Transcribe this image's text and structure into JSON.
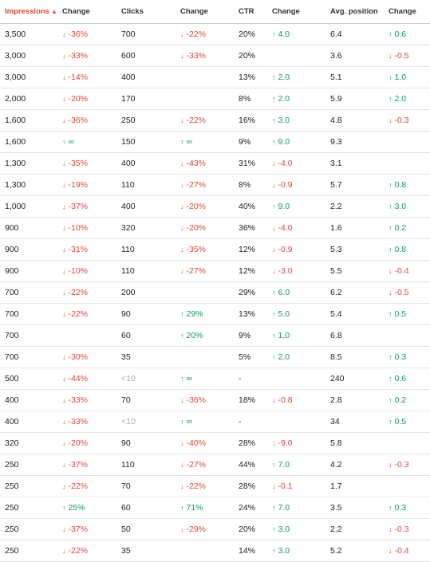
{
  "columns": [
    {
      "label": "Impressions",
      "sorted": true,
      "sort_icon": "▲"
    },
    {
      "label": "Change"
    },
    {
      "label": "Clicks"
    },
    {
      "label": "Change"
    },
    {
      "label": "CTR"
    },
    {
      "label": "Change"
    },
    {
      "label": "Avg. position"
    },
    {
      "label": "Change"
    }
  ],
  "rows": [
    {
      "imp": "3,500",
      "imp_chg": "-36%",
      "imp_dir": "down",
      "clicks": "700",
      "clicks_chg": "-22%",
      "clicks_dir": "down",
      "ctr": "20%",
      "ctr_chg": "4.0",
      "ctr_dir": "up",
      "pos": "6.4",
      "pos_chg": "0.6",
      "pos_dir": "up"
    },
    {
      "imp": "3,000",
      "imp_chg": "-33%",
      "imp_dir": "down",
      "clicks": "600",
      "clicks_chg": "-33%",
      "clicks_dir": "down",
      "ctr": "20%",
      "ctr_chg": "",
      "ctr_dir": "",
      "pos": "3.6",
      "pos_chg": "-0.5",
      "pos_dir": "down"
    },
    {
      "imp": "3,000",
      "imp_chg": "-14%",
      "imp_dir": "down",
      "clicks": "400",
      "clicks_chg": "",
      "clicks_dir": "",
      "ctr": "13%",
      "ctr_chg": "2.0",
      "ctr_dir": "up",
      "pos": "5.1",
      "pos_chg": "1.0",
      "pos_dir": "up"
    },
    {
      "imp": "2,000",
      "imp_chg": "-20%",
      "imp_dir": "down",
      "clicks": "170",
      "clicks_chg": "",
      "clicks_dir": "",
      "ctr": "8%",
      "ctr_chg": "2.0",
      "ctr_dir": "up",
      "pos": "5.9",
      "pos_chg": "2.0",
      "pos_dir": "up"
    },
    {
      "imp": "1,600",
      "imp_chg": "-36%",
      "imp_dir": "down",
      "clicks": "250",
      "clicks_chg": "-22%",
      "clicks_dir": "down",
      "ctr": "16%",
      "ctr_chg": "3.0",
      "ctr_dir": "up",
      "pos": "4.8",
      "pos_chg": "-0.3",
      "pos_dir": "down"
    },
    {
      "imp": "1,600",
      "imp_chg": "∞",
      "imp_dir": "up",
      "clicks": "150",
      "clicks_chg": "∞",
      "clicks_dir": "up",
      "ctr": "9%",
      "ctr_chg": "9.0",
      "ctr_dir": "up",
      "pos": "9.3",
      "pos_chg": "",
      "pos_dir": ""
    },
    {
      "imp": "1,300",
      "imp_chg": "-35%",
      "imp_dir": "down",
      "clicks": "400",
      "clicks_chg": "-43%",
      "clicks_dir": "down",
      "ctr": "31%",
      "ctr_chg": "-4.0",
      "ctr_dir": "down",
      "pos": "3.1",
      "pos_chg": "",
      "pos_dir": ""
    },
    {
      "imp": "1,300",
      "imp_chg": "-19%",
      "imp_dir": "down",
      "clicks": "110",
      "clicks_chg": "-27%",
      "clicks_dir": "down",
      "ctr": "8%",
      "ctr_chg": "-0.9",
      "ctr_dir": "down",
      "pos": "5.7",
      "pos_chg": "0.8",
      "pos_dir": "up"
    },
    {
      "imp": "1,000",
      "imp_chg": "-37%",
      "imp_dir": "down",
      "clicks": "400",
      "clicks_chg": "-20%",
      "clicks_dir": "down",
      "ctr": "40%",
      "ctr_chg": "9.0",
      "ctr_dir": "up",
      "pos": "2.2",
      "pos_chg": "3.0",
      "pos_dir": "up"
    },
    {
      "imp": "900",
      "imp_chg": "-10%",
      "imp_dir": "down",
      "clicks": "320",
      "clicks_chg": "-20%",
      "clicks_dir": "down",
      "ctr": "36%",
      "ctr_chg": "-4.0",
      "ctr_dir": "down",
      "pos": "1.6",
      "pos_chg": "0.2",
      "pos_dir": "up"
    },
    {
      "imp": "900",
      "imp_chg": "-31%",
      "imp_dir": "down",
      "clicks": "110",
      "clicks_chg": "-35%",
      "clicks_dir": "down",
      "ctr": "12%",
      "ctr_chg": "-0.9",
      "ctr_dir": "down",
      "pos": "5.3",
      "pos_chg": "0.8",
      "pos_dir": "up"
    },
    {
      "imp": "900",
      "imp_chg": "-10%",
      "imp_dir": "down",
      "clicks": "110",
      "clicks_chg": "-27%",
      "clicks_dir": "down",
      "ctr": "12%",
      "ctr_chg": "-3.0",
      "ctr_dir": "down",
      "pos": "5.5",
      "pos_chg": "-0.4",
      "pos_dir": "down"
    },
    {
      "imp": "700",
      "imp_chg": "-22%",
      "imp_dir": "down",
      "clicks": "200",
      "clicks_chg": "",
      "clicks_dir": "",
      "ctr": "29%",
      "ctr_chg": "6.0",
      "ctr_dir": "up",
      "pos": "6.2",
      "pos_chg": "-0.5",
      "pos_dir": "down"
    },
    {
      "imp": "700",
      "imp_chg": "-22%",
      "imp_dir": "down",
      "clicks": "90",
      "clicks_chg": "29%",
      "clicks_dir": "up",
      "ctr": "13%",
      "ctr_chg": "5.0",
      "ctr_dir": "up",
      "pos": "5.4",
      "pos_chg": "0.5",
      "pos_dir": "up"
    },
    {
      "imp": "700",
      "imp_chg": "",
      "imp_dir": "",
      "clicks": "60",
      "clicks_chg": "20%",
      "clicks_dir": "up",
      "ctr": "9%",
      "ctr_chg": "1.0",
      "ctr_dir": "up",
      "pos": "6.8",
      "pos_chg": "",
      "pos_dir": ""
    },
    {
      "imp": "700",
      "imp_chg": "-30%",
      "imp_dir": "down",
      "clicks": "35",
      "clicks_chg": "",
      "clicks_dir": "",
      "ctr": "5%",
      "ctr_chg": "2.0",
      "ctr_dir": "up",
      "pos": "8.5",
      "pos_chg": "0.3",
      "pos_dir": "up"
    },
    {
      "imp": "500",
      "imp_chg": "-44%",
      "imp_dir": "down",
      "clicks": "<10",
      "clicks_muted": true,
      "clicks_chg": "∞",
      "clicks_dir": "up",
      "ctr": "-",
      "ctr_chg": "",
      "ctr_dir": "",
      "pos": "240",
      "pos_chg": "0.6",
      "pos_dir": "up"
    },
    {
      "imp": "400",
      "imp_chg": "-33%",
      "imp_dir": "down",
      "clicks": "70",
      "clicks_chg": "-36%",
      "clicks_dir": "down",
      "ctr": "18%",
      "ctr_chg": "-0.8",
      "ctr_dir": "down",
      "pos": "2.8",
      "pos_chg": "0.2",
      "pos_dir": "up"
    },
    {
      "imp": "400",
      "imp_chg": "-33%",
      "imp_dir": "down",
      "clicks": "<10",
      "clicks_muted": true,
      "clicks_chg": "∞",
      "clicks_dir": "up",
      "ctr": "-",
      "ctr_chg": "",
      "ctr_dir": "",
      "pos": "34",
      "pos_chg": "0.5",
      "pos_dir": "up"
    },
    {
      "imp": "320",
      "imp_chg": "-20%",
      "imp_dir": "down",
      "clicks": "90",
      "clicks_chg": "-40%",
      "clicks_dir": "down",
      "ctr": "28%",
      "ctr_chg": "-9.0",
      "ctr_dir": "down",
      "pos": "5.8",
      "pos_chg": "",
      "pos_dir": ""
    },
    {
      "imp": "250",
      "imp_chg": "-37%",
      "imp_dir": "down",
      "clicks": "110",
      "clicks_chg": "-27%",
      "clicks_dir": "down",
      "ctr": "44%",
      "ctr_chg": "7.0",
      "ctr_dir": "up",
      "pos": "4.2",
      "pos_chg": "-0.3",
      "pos_dir": "down"
    },
    {
      "imp": "250",
      "imp_chg": "-22%",
      "imp_dir": "down",
      "clicks": "70",
      "clicks_chg": "-22%",
      "clicks_dir": "down",
      "ctr": "28%",
      "ctr_chg": "-0.1",
      "ctr_dir": "down",
      "pos": "1.7",
      "pos_chg": "",
      "pos_dir": ""
    },
    {
      "imp": "250",
      "imp_chg": "25%",
      "imp_dir": "up",
      "clicks": "60",
      "clicks_chg": "71%",
      "clicks_dir": "up",
      "ctr": "24%",
      "ctr_chg": "7.0",
      "ctr_dir": "up",
      "pos": "3.5",
      "pos_chg": "0.3",
      "pos_dir": "up"
    },
    {
      "imp": "250",
      "imp_chg": "-37%",
      "imp_dir": "down",
      "clicks": "50",
      "clicks_chg": "-29%",
      "clicks_dir": "down",
      "ctr": "20%",
      "ctr_chg": "3.0",
      "ctr_dir": "up",
      "pos": "2.2",
      "pos_chg": "-0.3",
      "pos_dir": "down"
    },
    {
      "imp": "250",
      "imp_chg": "-22%",
      "imp_dir": "down",
      "clicks": "35",
      "clicks_chg": "",
      "clicks_dir": "",
      "ctr": "14%",
      "ctr_chg": "3.0",
      "ctr_dir": "up",
      "pos": "5.2",
      "pos_chg": "-0.4",
      "pos_dir": "down"
    }
  ],
  "icons": {
    "up": "↑",
    "down": "↓"
  },
  "colors": {
    "down": "#dd4b39",
    "up": "#0f9d58",
    "sorted_header": "#dd4b39",
    "muted": "#aaaaaa"
  }
}
